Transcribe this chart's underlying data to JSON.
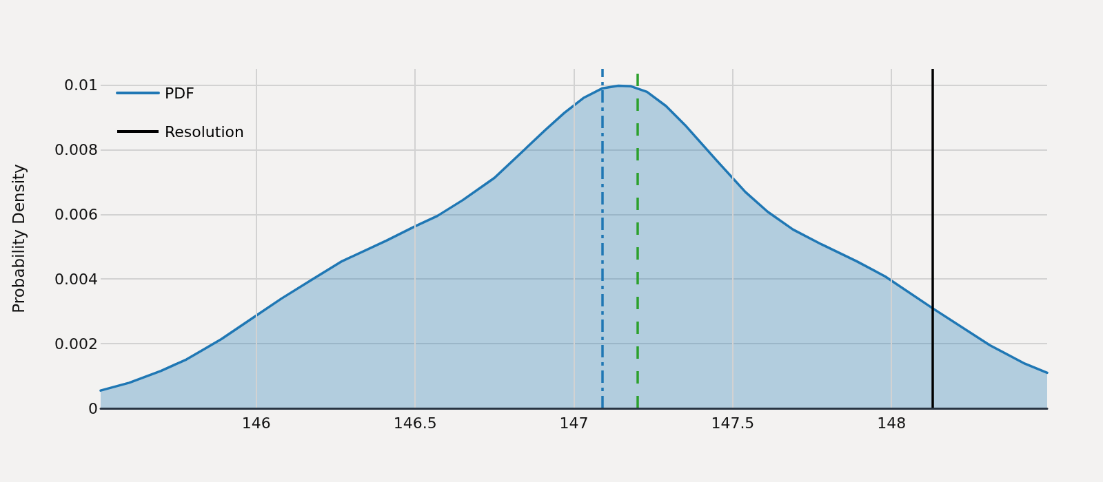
{
  "chart_data": {
    "type": "area",
    "ylabel": "Probability Density",
    "x": [
      145.51,
      145.6,
      145.7,
      145.78,
      145.89,
      146.0,
      146.08,
      146.18,
      146.27,
      146.41,
      146.5,
      146.57,
      146.65,
      146.75,
      146.84,
      146.91,
      146.97,
      147.03,
      147.09,
      147.14,
      147.18,
      147.23,
      147.29,
      147.35,
      147.45,
      147.54,
      147.61,
      147.69,
      147.78,
      147.89,
      147.98,
      148.13,
      148.31,
      148.42,
      148.49
    ],
    "series": [
      {
        "name": "PDF",
        "color": "#1f77b4",
        "values": [
          0.00055,
          0.00079,
          0.00116,
          0.00151,
          0.00214,
          0.00287,
          0.0034,
          0.00401,
          0.00455,
          0.00519,
          0.00563,
          0.00595,
          0.00644,
          0.00713,
          0.00796,
          0.00861,
          0.00914,
          0.0096,
          0.0099,
          0.00998,
          0.00996,
          0.00979,
          0.00935,
          0.00876,
          0.00766,
          0.00669,
          0.00608,
          0.00553,
          0.00507,
          0.00455,
          0.00408,
          0.00309,
          0.00195,
          0.00138,
          0.0011
        ]
      }
    ],
    "xlim": [
      145.51,
      148.49
    ],
    "ylim": [
      0,
      0.0105
    ],
    "xticks": [
      146,
      146.5,
      147,
      147.5,
      148
    ],
    "yticks": [
      0,
      0.002,
      0.004,
      0.006,
      0.008,
      0.01
    ],
    "ref_lines": [
      {
        "axis": "x",
        "value": 147.2,
        "color": "#2ca02c",
        "line_style": "dashed"
      },
      {
        "axis": "x",
        "value": 147.09,
        "color": "#1f77b4",
        "line_style": "dashdot"
      },
      {
        "axis": "x",
        "value": 148.13,
        "label": "Resolution",
        "color": "#000000",
        "line_style": "solid"
      }
    ],
    "grid": true,
    "legend": "top left",
    "marker": "none"
  }
}
